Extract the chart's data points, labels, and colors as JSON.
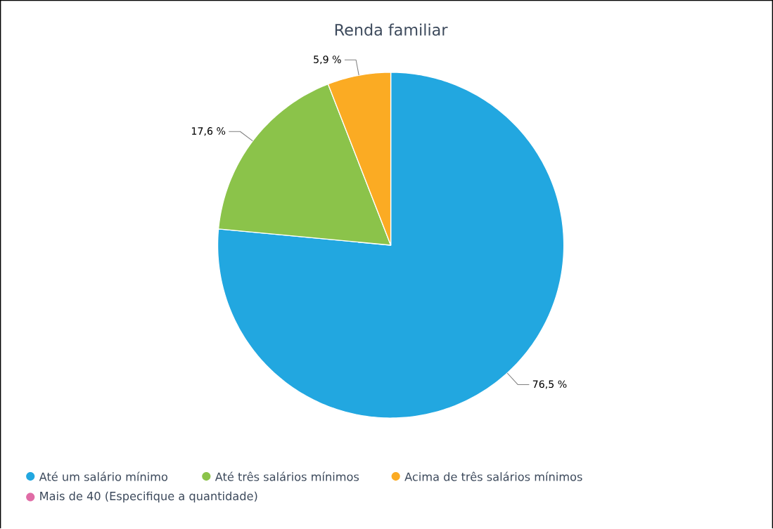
{
  "chart_data": {
    "type": "pie",
    "title": "Renda familiar",
    "categories": [
      "Até um salário mínimo",
      "Até três salários mínimos",
      "Acima de três salários mínimos",
      "Mais de 40 (Especifique a quantidade)"
    ],
    "values": [
      76.5,
      17.6,
      5.9,
      0
    ],
    "colors": [
      "#22a7e0",
      "#8bc34a",
      "#fbab23",
      "#e06ca6"
    ],
    "value_labels": [
      "76,5 %",
      "17,6 %",
      "5,9 %",
      null
    ],
    "legend": "bottom"
  }
}
